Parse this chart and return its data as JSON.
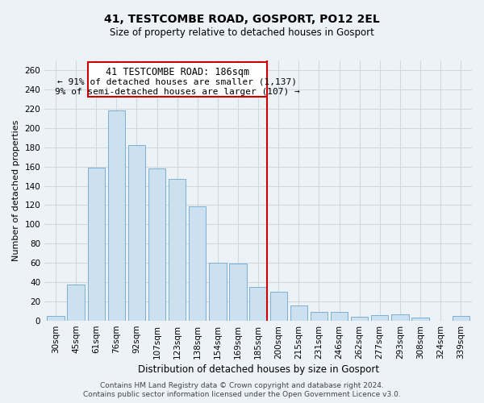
{
  "title": "41, TESTCOMBE ROAD, GOSPORT, PO12 2EL",
  "subtitle": "Size of property relative to detached houses in Gosport",
  "xlabel": "Distribution of detached houses by size in Gosport",
  "ylabel": "Number of detached properties",
  "categories": [
    "30sqm",
    "45sqm",
    "61sqm",
    "76sqm",
    "92sqm",
    "107sqm",
    "123sqm",
    "138sqm",
    "154sqm",
    "169sqm",
    "185sqm",
    "200sqm",
    "215sqm",
    "231sqm",
    "246sqm",
    "262sqm",
    "277sqm",
    "293sqm",
    "308sqm",
    "324sqm",
    "339sqm"
  ],
  "values": [
    5,
    38,
    159,
    218,
    182,
    158,
    147,
    119,
    60,
    59,
    35,
    30,
    16,
    9,
    9,
    4,
    6,
    7,
    3,
    0,
    5
  ],
  "bar_color": "#cce0f0",
  "bar_edge_color": "#7ab0d4",
  "vline_color": "#cc0000",
  "annotation_title": "41 TESTCOMBE ROAD: 186sqm",
  "annotation_line1": "← 91% of detached houses are smaller (1,137)",
  "annotation_line2": "9% of semi-detached houses are larger (107) →",
  "annotation_box_edge": "#cc0000",
  "ylim": [
    0,
    270
  ],
  "yticks": [
    0,
    20,
    40,
    60,
    80,
    100,
    120,
    140,
    160,
    180,
    200,
    220,
    240,
    260
  ],
  "footer_line1": "Contains HM Land Registry data © Crown copyright and database right 2024.",
  "footer_line2": "Contains public sector information licensed under the Open Government Licence v3.0.",
  "bg_color": "#edf2f7",
  "grid_color": "#d0d8e4",
  "title_fontsize": 10,
  "subtitle_fontsize": 8.5,
  "ylabel_fontsize": 8,
  "xlabel_fontsize": 8.5,
  "tick_fontsize": 7.5,
  "footer_fontsize": 6.5
}
